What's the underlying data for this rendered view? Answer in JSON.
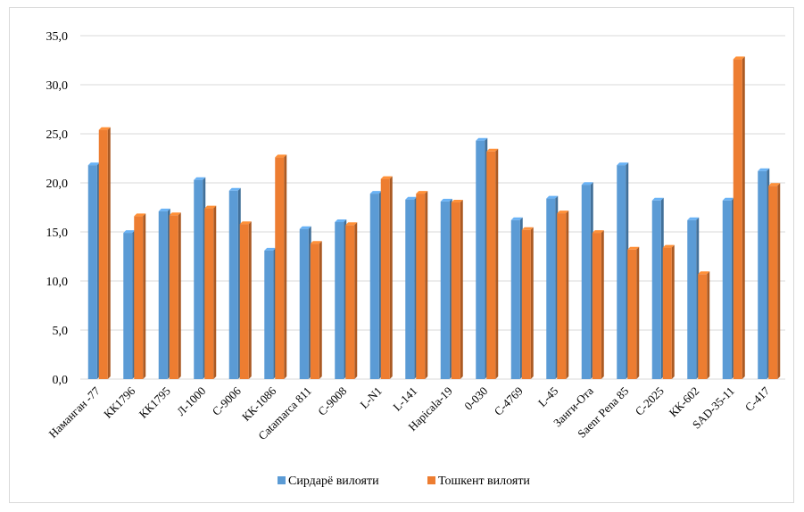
{
  "chart_data": {
    "type": "bar",
    "title": "",
    "xlabel": "",
    "ylabel": "",
    "ylim": [
      0,
      35
    ],
    "y_ticks": [
      "0,0",
      "5,0",
      "10,0",
      "15,0",
      "20,0",
      "25,0",
      "30,0",
      "35,0"
    ],
    "grid": true,
    "legend_position": "bottom",
    "categories": [
      "Наманган -77",
      "КК1796",
      "КК1795",
      "Л-1000",
      "С-9006",
      "КК-1086",
      "Catamarca 811",
      "С-9008",
      "L-N1",
      "L-141",
      "Hapicala-19",
      "0-030",
      "С-4769",
      "L-45",
      "Занги-Ота",
      "Saenr Pena 85",
      "С-2025",
      "КК-602",
      "SAD-35-11",
      "С-417"
    ],
    "series": [
      {
        "name": "Сирдарё вилояти",
        "color": "#5b9bd5",
        "values": [
          21.8,
          14.9,
          17.1,
          20.3,
          19.2,
          13.1,
          15.3,
          16.0,
          18.9,
          18.3,
          18.1,
          24.3,
          16.2,
          18.4,
          19.8,
          21.8,
          18.2,
          16.2,
          18.2,
          21.2
        ]
      },
      {
        "name": "Тошкент вилояти",
        "color": "#ed7d31",
        "values": [
          25.4,
          16.6,
          16.7,
          17.4,
          15.8,
          22.6,
          13.8,
          15.7,
          20.4,
          18.9,
          18.0,
          23.2,
          15.2,
          16.9,
          14.9,
          13.2,
          13.4,
          10.7,
          32.6,
          19.7
        ]
      }
    ]
  }
}
